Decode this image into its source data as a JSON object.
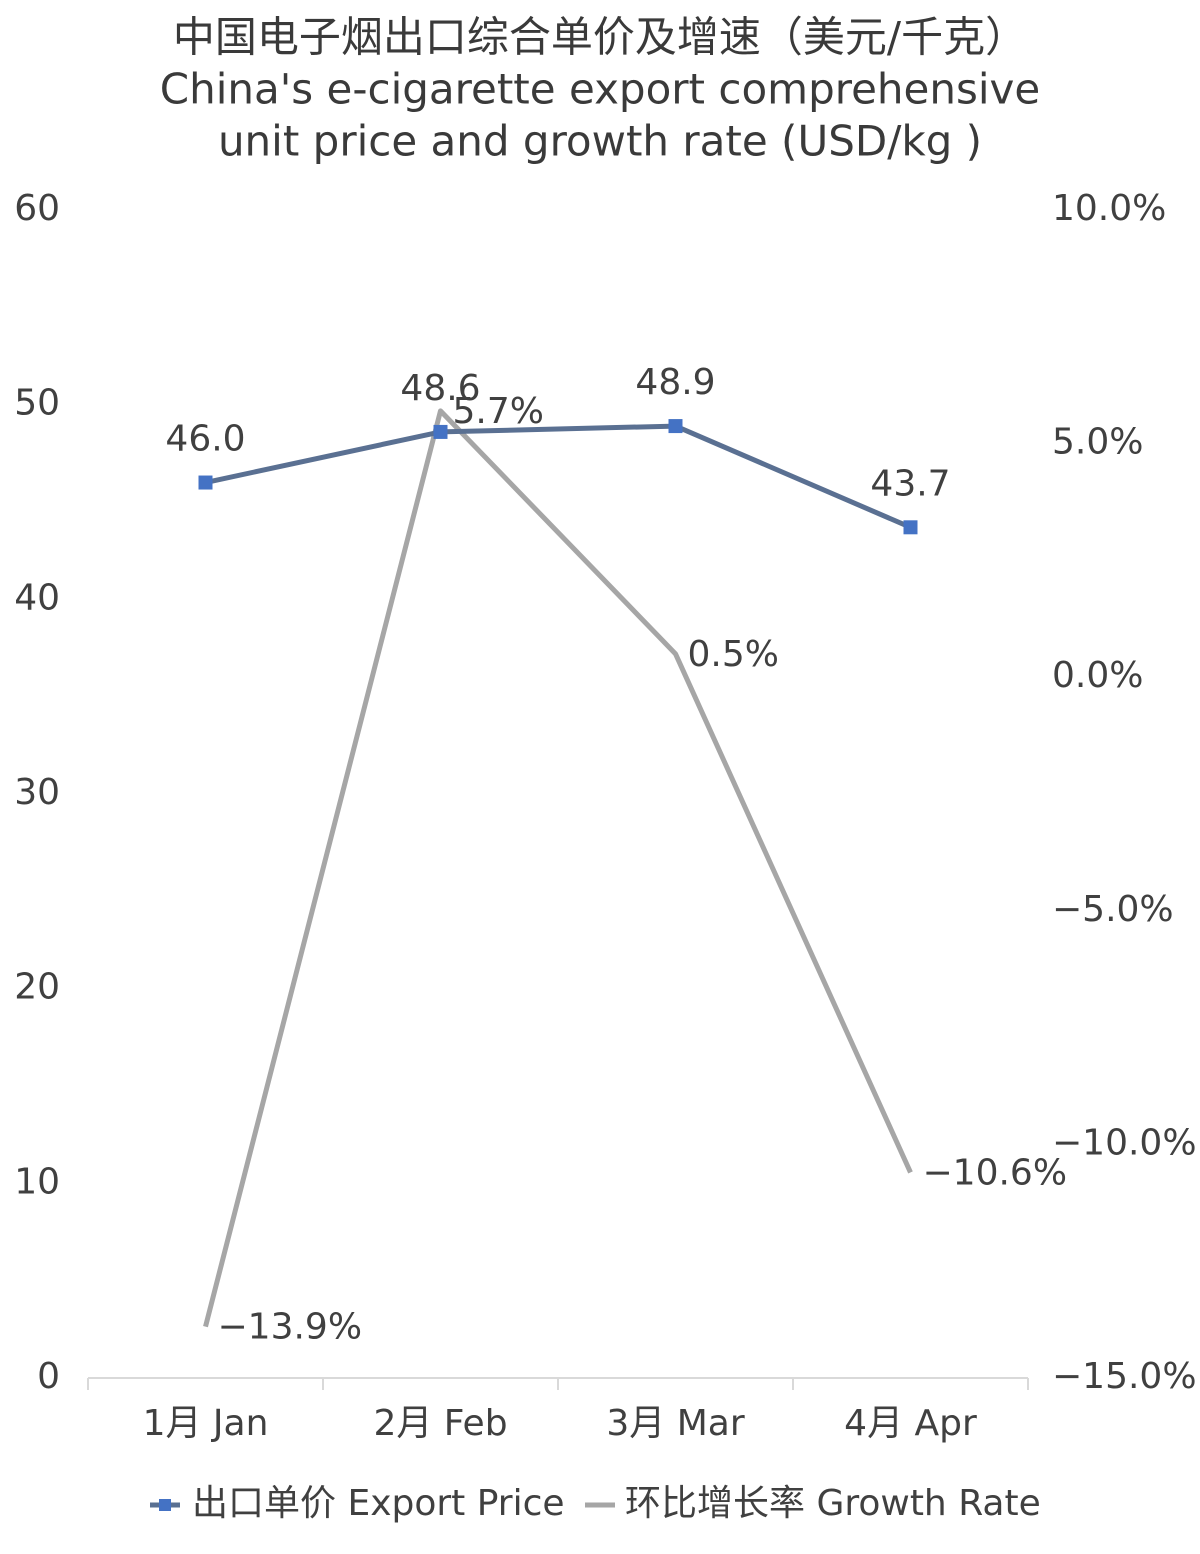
{
  "chart_data": {
    "type": "line",
    "title": [
      "中国电子烟出口综合单价及增速（美元/千克）",
      "China's e-cigarette export comprehensive",
      "unit price and growth rate (USD/kg )"
    ],
    "categories": [
      "1月 Jan",
      "2月 Feb",
      "3月 Mar",
      "4月 Apr"
    ],
    "series": [
      {
        "name": "出口单价 Export Price",
        "color": "#4472c4",
        "line_color": "#5a7092",
        "values": [
          46.0,
          48.6,
          48.9,
          43.7
        ],
        "value_labels": [
          "46.0",
          "48.6",
          "48.9",
          "43.7"
        ],
        "marker": "square"
      },
      {
        "name": "环比增长率 Growth Rate",
        "color": "#a6a6a6",
        "axis": "y2",
        "values": [
          -13.9,
          5.7,
          0.5,
          -10.6
        ],
        "value_labels": [
          "−13.9%",
          "5.7%",
          "0.5%",
          "−10.6%"
        ]
      }
    ],
    "ylim": [
      0,
      60
    ],
    "yticks": [
      0,
      10,
      20,
      30,
      40,
      50,
      60
    ],
    "y2lim": [
      -15,
      10
    ],
    "y2ticks": [
      {
        "value": -15,
        "label": "−15.0%"
      },
      {
        "value": -10,
        "label": "−10.0%"
      },
      {
        "value": -5,
        "label": "−5.0%"
      },
      {
        "value": 0,
        "label": "0.0%"
      },
      {
        "value": 5,
        "label": "5.0%"
      },
      {
        "value": 10,
        "label": "10.0%"
      }
    ],
    "grid": false,
    "legend": "bottom"
  }
}
